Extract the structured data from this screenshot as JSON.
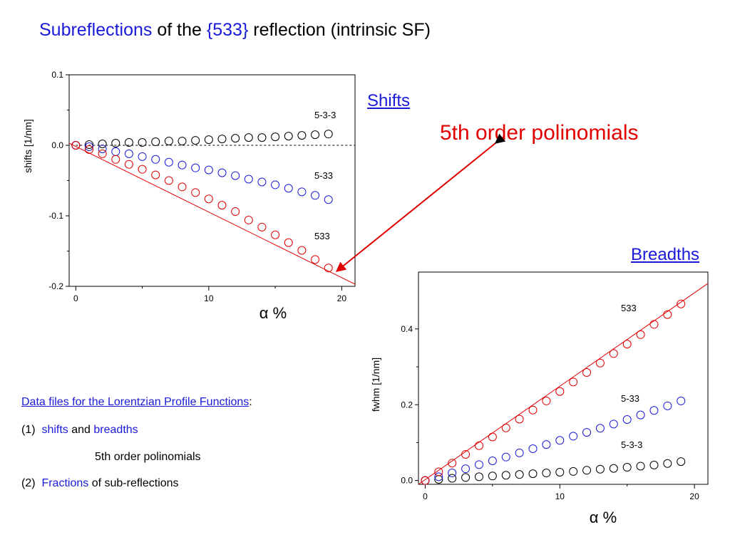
{
  "slide": {
    "title_parts": [
      "Subreflections",
      " of the ",
      "{533}",
      " reflection (intrinsic SF)"
    ],
    "shifts_label": "Shifts",
    "breadths_label": "Breadths",
    "poly_label": "5th order polinomials",
    "notes": {
      "data_files_link": "Data files for the Lorentzian Profile Functions",
      "colon": ":",
      "item1_num": "(1)",
      "item1_shifts": "shifts",
      "item1_and": "and",
      "item1_breadths": "breadths",
      "item1_sub": "5th order polinomials",
      "item2_num": "(2)",
      "item2_fractions": "Fractions",
      "item2_rest": "of sub-reflections"
    },
    "colors": {
      "accent_blue": "#1a1ad8",
      "accent_red": "#e00000",
      "series_black": "#000000"
    }
  },
  "chart_data": [
    {
      "type": "scatter",
      "title": "",
      "xlabel": "α %",
      "ylabel": "shifts  [1/nm]",
      "xlim": [
        -0.5,
        21
      ],
      "ylim": [
        -0.2,
        0.1
      ],
      "xticks": [
        0,
        10,
        20
      ],
      "xtick_labels": [
        "0",
        "10",
        "20"
      ],
      "yticks": [
        0.1,
        0.0,
        -0.1,
        -0.2
      ],
      "ytick_labels": [
        "0.1",
        "0.0",
        "-0.1",
        "-0.2"
      ],
      "reference_line_y": 0.0,
      "x": [
        0,
        1,
        2,
        3,
        4,
        5,
        6,
        7,
        8,
        9,
        10,
        11,
        12,
        13,
        14,
        15,
        16,
        17,
        18,
        19
      ],
      "series": [
        {
          "name": "5-3-3",
          "color": "#000000",
          "values": [
            0.0,
            0.001,
            0.002,
            0.003,
            0.004,
            0.004,
            0.005,
            0.006,
            0.006,
            0.007,
            0.008,
            0.009,
            0.01,
            0.011,
            0.011,
            0.012,
            0.013,
            0.014,
            0.015,
            0.016
          ]
        },
        {
          "name": "5-33",
          "color": "#1a1ad8",
          "values": [
            0.0,
            -0.002,
            -0.005,
            -0.009,
            -0.012,
            -0.016,
            -0.02,
            -0.024,
            -0.028,
            -0.032,
            -0.035,
            -0.039,
            -0.043,
            -0.048,
            -0.052,
            -0.056,
            -0.061,
            -0.066,
            -0.071,
            -0.077
          ]
        },
        {
          "name": "533",
          "color": "#e00000",
          "values": [
            0.0,
            -0.006,
            -0.012,
            -0.02,
            -0.027,
            -0.034,
            -0.042,
            -0.05,
            -0.059,
            -0.067,
            -0.076,
            -0.085,
            -0.094,
            -0.106,
            -0.116,
            -0.127,
            -0.138,
            -0.149,
            -0.162,
            -0.174
          ],
          "fit": [
            [
              -0.5,
              0.003
            ],
            [
              21,
              -0.197
            ]
          ]
        }
      ]
    },
    {
      "type": "scatter",
      "title": "",
      "xlabel": "α %",
      "ylabel": "fwhm  [1/nm]",
      "xlim": [
        -0.5,
        21
      ],
      "ylim": [
        -0.01,
        0.55
      ],
      "xticks": [
        0,
        10,
        20
      ],
      "xtick_labels": [
        "0",
        "10",
        "20"
      ],
      "yticks": [
        0.0,
        0.2,
        0.4
      ],
      "ytick_labels": [
        "0.0",
        "0.2",
        "0.4"
      ],
      "x": [
        0,
        1,
        2,
        3,
        4,
        5,
        6,
        7,
        8,
        9,
        10,
        11,
        12,
        13,
        14,
        15,
        16,
        17,
        18,
        19
      ],
      "series": [
        {
          "name": "5-3-3",
          "color": "#000000",
          "values": [
            0.0,
            0.003,
            0.006,
            0.008,
            0.01,
            0.012,
            0.014,
            0.016,
            0.018,
            0.02,
            0.022,
            0.024,
            0.027,
            0.03,
            0.032,
            0.035,
            0.038,
            0.041,
            0.045,
            0.05
          ]
        },
        {
          "name": "5-33",
          "color": "#1a1ad8",
          "values": [
            0.0,
            0.01,
            0.02,
            0.031,
            0.042,
            0.052,
            0.062,
            0.073,
            0.084,
            0.095,
            0.106,
            0.117,
            0.127,
            0.138,
            0.149,
            0.161,
            0.173,
            0.185,
            0.197,
            0.21
          ]
        },
        {
          "name": "533",
          "color": "#e00000",
          "values": [
            0.0,
            0.023,
            0.046,
            0.069,
            0.092,
            0.115,
            0.139,
            0.162,
            0.186,
            0.21,
            0.235,
            0.26,
            0.285,
            0.31,
            0.335,
            0.36,
            0.385,
            0.412,
            0.438,
            0.466
          ],
          "fit": [
            [
              -0.5,
              -0.01
            ],
            [
              21,
              0.52
            ]
          ]
        }
      ]
    }
  ]
}
